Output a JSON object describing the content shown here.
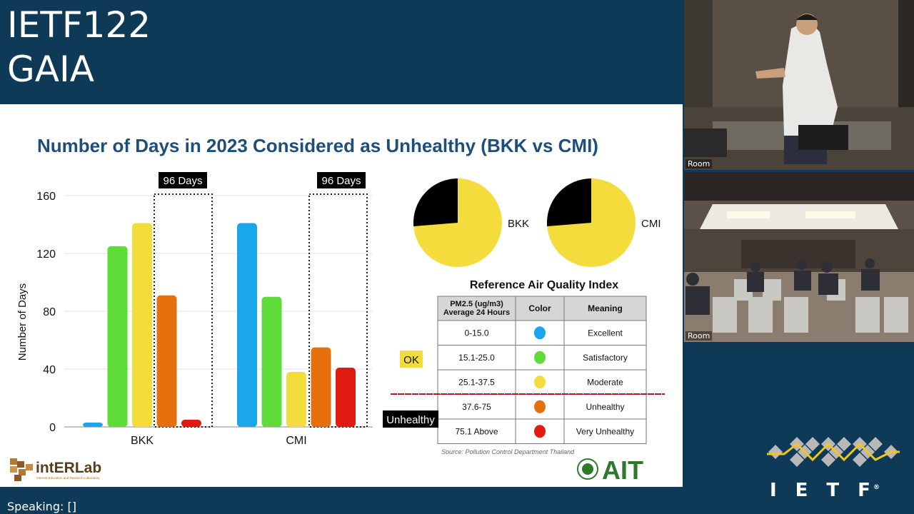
{
  "session": {
    "line1": "IETF122",
    "line2": "GAIA"
  },
  "speaking": "Speaking: []",
  "video_tiles": [
    {
      "label": "Room"
    },
    {
      "label": "Room"
    }
  ],
  "ietf_logo": {
    "wordmark": "IETF",
    "registered": "®"
  },
  "slide": {
    "title": "Number of Days in 2023 Considered as Unhealthy (BKK vs CMI)",
    "callouts": [
      "96 Days",
      "96 Days"
    ],
    "pies": [
      {
        "label": "BKK",
        "unhealthy_share": 0.263
      },
      {
        "label": "CMI",
        "unhealthy_share": 0.263
      }
    ],
    "aqi_table": {
      "title": "Reference Air Quality Index",
      "headers": [
        "PM2.5 (ug/m3)\nAverage 24 Hours",
        "Color",
        "Meaning"
      ],
      "rows": [
        {
          "range": "0-15.0",
          "color": "#1aa6ea",
          "meaning": "Excellent"
        },
        {
          "range": "15.1-25.0",
          "color": "#5fdc3a",
          "meaning": "Satisfactory"
        },
        {
          "range": "25.1-37.5",
          "color": "#f5dc3d",
          "meaning": "Moderate"
        },
        {
          "range": "37.6-75",
          "color": "#e6700e",
          "meaning": "Unhealthy"
        },
        {
          "range": "75.1 Above",
          "color": "#e01b12",
          "meaning": "Very Unhealthy"
        }
      ],
      "source": "Source: Pollution Control Department Thailand"
    },
    "tag_ok": "OK",
    "tag_unhealthy": "Unhealthy",
    "logo_left": {
      "name": "intERLab",
      "sub": "Internet Education and Research Laboratory"
    },
    "logo_right": {
      "name": "AIT"
    }
  },
  "chart_data": {
    "type": "bar",
    "ylabel": "Number of Days",
    "ylim": [
      0,
      160
    ],
    "yticks": [
      0,
      40,
      80,
      120,
      160
    ],
    "categories": [
      "BKK",
      "CMI"
    ],
    "series": [
      {
        "name": "Excellent",
        "color": "#1aa6ea",
        "values": [
          3,
          141
        ]
      },
      {
        "name": "Satisfactory",
        "color": "#5fdc3a",
        "values": [
          125,
          90
        ]
      },
      {
        "name": "Moderate",
        "color": "#f5dc3d",
        "values": [
          141,
          38
        ]
      },
      {
        "name": "Unhealthy",
        "color": "#e6700e",
        "values": [
          91,
          55
        ]
      },
      {
        "name": "Very Unhealthy",
        "color": "#e01b12",
        "values": [
          5,
          41
        ]
      }
    ]
  }
}
